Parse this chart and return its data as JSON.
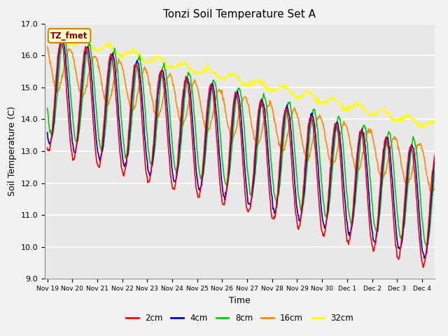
{
  "title": "Tonzi Soil Temperature Set A",
  "xlabel": "Time",
  "ylabel": "Soil Temperature (C)",
  "ylim": [
    9.0,
    17.0
  ],
  "yticks": [
    9.0,
    10.0,
    11.0,
    12.0,
    13.0,
    14.0,
    15.0,
    16.0,
    17.0
  ],
  "colors": {
    "2cm": "#ff0000",
    "4cm": "#0000cc",
    "8cm": "#00cc00",
    "16cm": "#ff8800",
    "32cm": "#ffff00"
  },
  "legend_label": "TZ_fmet",
  "bg_color": "#e8e8e8",
  "amplitudes": {
    "2cm": 1.8,
    "4cm": 1.7,
    "8cm": 1.6,
    "16cm": 0.7,
    "32cm": 0.12
  },
  "trend_start": {
    "2cm": 14.8,
    "4cm": 14.95,
    "8cm": 15.15,
    "16cm": 15.7,
    "32cm": 16.65
  },
  "trend_end": {
    "2cm": 11.0,
    "4cm": 11.15,
    "8cm": 11.45,
    "16cm": 12.3,
    "32cm": 13.7
  },
  "phase_shift_days": {
    "2cm": 0.0,
    "4cm": 0.05,
    "8cm": 0.12,
    "16cm": 0.35,
    "32cm": 0.9
  },
  "tick_labels": [
    "Nov 19",
    "Nov 20",
    "Nov 21",
    "Nov 22",
    "Nov 23",
    "Nov 24",
    "Nov 25",
    "Nov 26",
    "Nov 27",
    "Nov 28",
    "Nov 29",
    "Nov 30",
    "Dec 1",
    "Dec 2",
    "Dec 3",
    "Dec 4"
  ]
}
